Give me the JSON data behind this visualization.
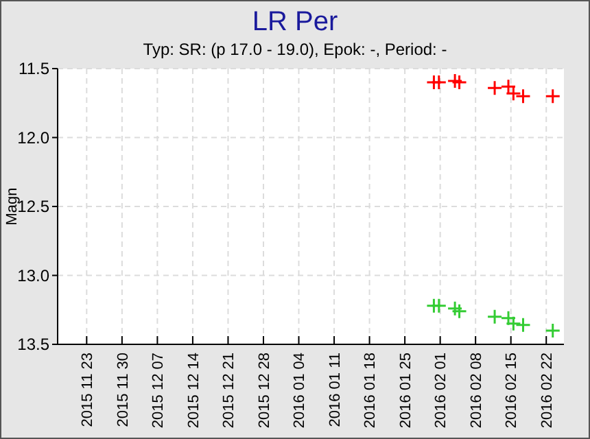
{
  "chart_data": {
    "type": "scatter",
    "title": "LR Per",
    "subtitle": "Typ: SR: (p 17.0 - 19.0), Epok: -, Period: -",
    "ylabel": "Magn",
    "xlim": [
      "2015-11-17T06:00",
      "2016-02-25T12:00"
    ],
    "xticks": [
      {
        "value": "2015-11-23",
        "label": "2015 11 23"
      },
      {
        "value": "2015-11-30",
        "label": "2015 11 30"
      },
      {
        "value": "2015-12-07",
        "label": "2015 12 07"
      },
      {
        "value": "2015-12-14",
        "label": "2015 12 14"
      },
      {
        "value": "2015-12-21",
        "label": "2015 12 21"
      },
      {
        "value": "2015-12-28",
        "label": "2015 12 28"
      },
      {
        "value": "2016-01-04",
        "label": "2016 01 04"
      },
      {
        "value": "2016-01-11",
        "label": "2016 01 11"
      },
      {
        "value": "2016-01-18",
        "label": "2016 01 18"
      },
      {
        "value": "2016-01-25",
        "label": "2016 01 25"
      },
      {
        "value": "2016-02-01",
        "label": "2016 02 01"
      },
      {
        "value": "2016-02-08",
        "label": "2016 02 08"
      },
      {
        "value": "2016-02-15",
        "label": "2016 02 15"
      },
      {
        "value": "2016-02-22",
        "label": "2016 02 22"
      }
    ],
    "ylim": [
      13.5,
      11.5
    ],
    "yticks": [
      {
        "value": 11.5,
        "label": "11.5"
      },
      {
        "value": 12,
        "label": "12.0"
      },
      {
        "value": 12.5,
        "label": "12.5"
      },
      {
        "value": 13,
        "label": "13.0"
      },
      {
        "value": 13.5,
        "label": "13.5"
      }
    ],
    "grid": true,
    "marker": "cross",
    "x": [
      "2016-01-30T18:00",
      "2016-01-31T18:00",
      "2016-02-03T22:00",
      "2016-02-04T19:00",
      "2016-02-11T19:00",
      "2016-02-14T12:00",
      "2016-02-15T12:00",
      "2016-02-17T10:00",
      "2016-02-23T07:00"
    ],
    "series": [
      {
        "color": "#ff0000",
        "values": [
          11.6,
          11.6,
          11.59,
          11.6,
          11.64,
          11.63,
          11.68,
          11.7,
          11.7
        ]
      },
      {
        "color": "#33cc33",
        "values": [
          13.22,
          13.22,
          13.24,
          13.26,
          13.3,
          13.31,
          13.35,
          13.36,
          13.4
        ]
      }
    ]
  }
}
